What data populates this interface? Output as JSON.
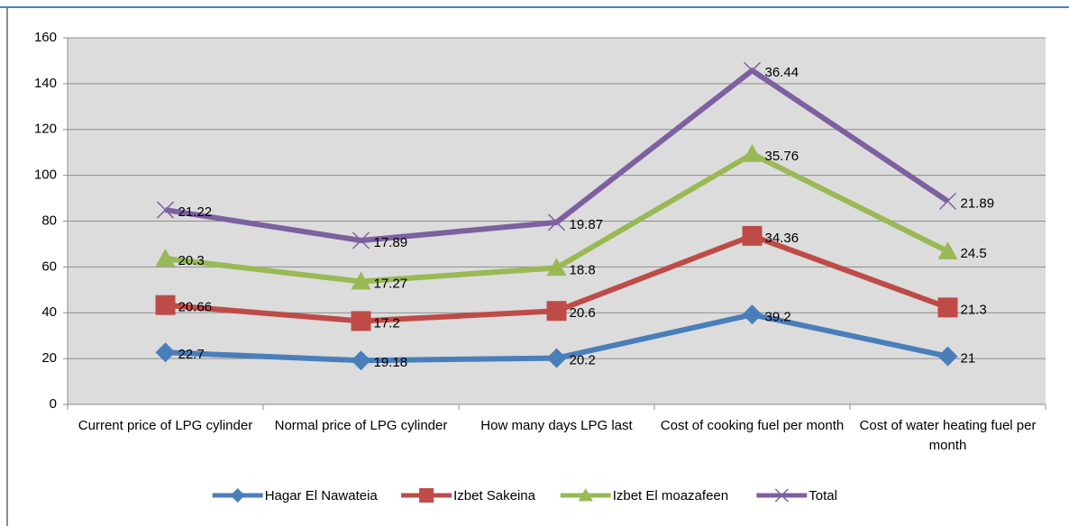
{
  "chart_data": {
    "type": "line",
    "stacked": true,
    "categories": [
      "Current price of LPG cylinder",
      "Normal price of LPG cylinder",
      "How many days LPG last",
      "Cost of cooking fuel per month",
      "Cost of water heating fuel per month"
    ],
    "series": [
      {
        "name": "Hagar El Nawateia",
        "color": "#4a7ebb",
        "marker": "diamond",
        "values": [
          22.7,
          19.18,
          20.2,
          39.2,
          21
        ]
      },
      {
        "name": "Izbet Sakeina",
        "color": "#be4b48",
        "marker": "square",
        "values": [
          20.66,
          17.2,
          20.6,
          34.36,
          21.3
        ]
      },
      {
        "name": "Izbet El moazafeen",
        "color": "#98b954",
        "marker": "triangle",
        "values": [
          20.3,
          17.27,
          18.8,
          35.76,
          24.5
        ]
      },
      {
        "name": "Total",
        "color": "#7d60a0",
        "marker": "x",
        "values": [
          21.22,
          17.89,
          19.87,
          36.44,
          21.89
        ]
      }
    ],
    "ylim": [
      0,
      160
    ],
    "yticks": [
      0,
      20,
      40,
      60,
      80,
      100,
      120,
      140,
      160
    ],
    "grid": true,
    "legend": "bottom"
  }
}
